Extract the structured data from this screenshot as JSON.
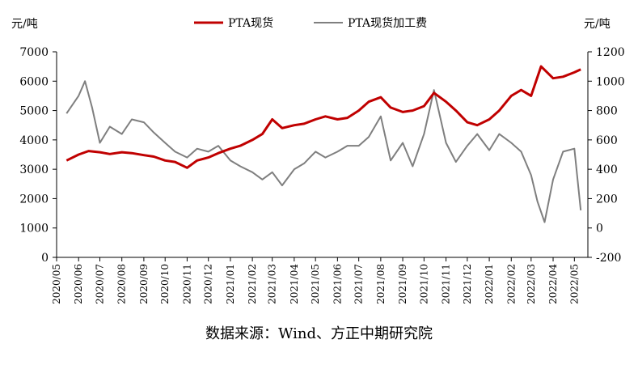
{
  "chart_data": {
    "type": "line",
    "left_axis_unit": "元/吨",
    "right_axis_unit": "元/吨",
    "left_axis": {
      "ylim": [
        0,
        7000
      ],
      "ticks": [
        "0",
        "1000",
        "2000",
        "3000",
        "4000",
        "5000",
        "6000",
        "7000"
      ]
    },
    "right_axis": {
      "ylim": [
        -200,
        1200
      ],
      "ticks": [
        "-200",
        "0",
        "200",
        "400",
        "600",
        "800",
        "1000",
        "1200"
      ]
    },
    "x_ticks": [
      "2020/05",
      "2020/06",
      "2020/07",
      "2020/08",
      "2020/09",
      "2020/10",
      "2020/11",
      "2020/12",
      "2021/01",
      "2021/02",
      "2021/03",
      "2021/04",
      "2021/05",
      "2021/06",
      "2021/07",
      "2021/08",
      "2021/09",
      "2021/10",
      "2021/11",
      "2021/12",
      "2022/01",
      "2022/02",
      "2022/03",
      "2022/04",
      "2022/05"
    ],
    "legend_position": "top-center",
    "grid": false,
    "series": [
      {
        "name": "PTA现货",
        "axis": "left",
        "color": "#c00000",
        "x": [
          "2020/05/15",
          "2020/06/01",
          "2020/06/15",
          "2020/07/01",
          "2020/07/15",
          "2020/08/01",
          "2020/08/15",
          "2020/09/01",
          "2020/09/15",
          "2020/10/01",
          "2020/10/15",
          "2020/11/01",
          "2020/11/15",
          "2020/12/01",
          "2020/12/15",
          "2021/01/01",
          "2021/01/15",
          "2021/02/01",
          "2021/02/15",
          "2021/03/01",
          "2021/03/15",
          "2021/04/01",
          "2021/04/15",
          "2021/05/01",
          "2021/05/15",
          "2021/06/01",
          "2021/06/15",
          "2021/07/01",
          "2021/07/15",
          "2021/08/01",
          "2021/08/15",
          "2021/09/01",
          "2021/09/15",
          "2021/10/01",
          "2021/10/15",
          "2021/11/01",
          "2021/11/15",
          "2021/12/01",
          "2021/12/15",
          "2022/01/01",
          "2022/01/15",
          "2022/02/01",
          "2022/02/15",
          "2022/03/01",
          "2022/03/15",
          "2022/04/01",
          "2022/04/15",
          "2022/05/01",
          "2022/05/10"
        ],
        "values": [
          3300,
          3500,
          3620,
          3580,
          3520,
          3580,
          3550,
          3480,
          3430,
          3300,
          3250,
          3050,
          3300,
          3400,
          3550,
          3700,
          3800,
          4000,
          4200,
          4700,
          4400,
          4500,
          4550,
          4700,
          4800,
          4700,
          4750,
          5000,
          5300,
          5450,
          5100,
          4950,
          5000,
          5150,
          5600,
          5300,
          5000,
          4600,
          4500,
          4700,
          5000,
          5500,
          5700,
          5500,
          6500,
          6100,
          6150,
          6300,
          6400
        ]
      },
      {
        "name": "PTA现货加工费",
        "axis": "right",
        "color": "#7f7f7f",
        "x": [
          "2020/05/15",
          "2020/06/01",
          "2020/06/10",
          "2020/06/20",
          "2020/07/01",
          "2020/07/15",
          "2020/08/01",
          "2020/08/15",
          "2020/09/01",
          "2020/09/15",
          "2020/10/01",
          "2020/10/15",
          "2020/11/01",
          "2020/11/15",
          "2020/12/01",
          "2020/12/15",
          "2021/01/01",
          "2021/01/15",
          "2021/02/01",
          "2021/02/15",
          "2021/03/01",
          "2021/03/15",
          "2021/04/01",
          "2021/04/15",
          "2021/05/01",
          "2021/05/15",
          "2021/06/01",
          "2021/06/15",
          "2021/07/01",
          "2021/07/15",
          "2021/08/01",
          "2021/08/15",
          "2021/09/01",
          "2021/09/15",
          "2021/10/01",
          "2021/10/15",
          "2021/11/01",
          "2021/11/15",
          "2021/12/01",
          "2021/12/15",
          "2022/01/01",
          "2022/01/15",
          "2022/02/01",
          "2022/02/15",
          "2022/03/01",
          "2022/03/10",
          "2022/03/20",
          "2022/04/01",
          "2022/04/15",
          "2022/05/01",
          "2022/05/10"
        ],
        "values": [
          780,
          900,
          1000,
          820,
          580,
          690,
          640,
          740,
          720,
          650,
          580,
          520,
          480,
          540,
          520,
          560,
          460,
          420,
          380,
          330,
          380,
          290,
          400,
          440,
          520,
          480,
          520,
          560,
          560,
          620,
          760,
          460,
          580,
          420,
          640,
          940,
          580,
          450,
          560,
          640,
          530,
          640,
          580,
          520,
          360,
          180,
          40,
          330,
          520,
          540,
          120
        ]
      }
    ]
  },
  "source_note": "数据来源：Wind、方正中期研究院"
}
